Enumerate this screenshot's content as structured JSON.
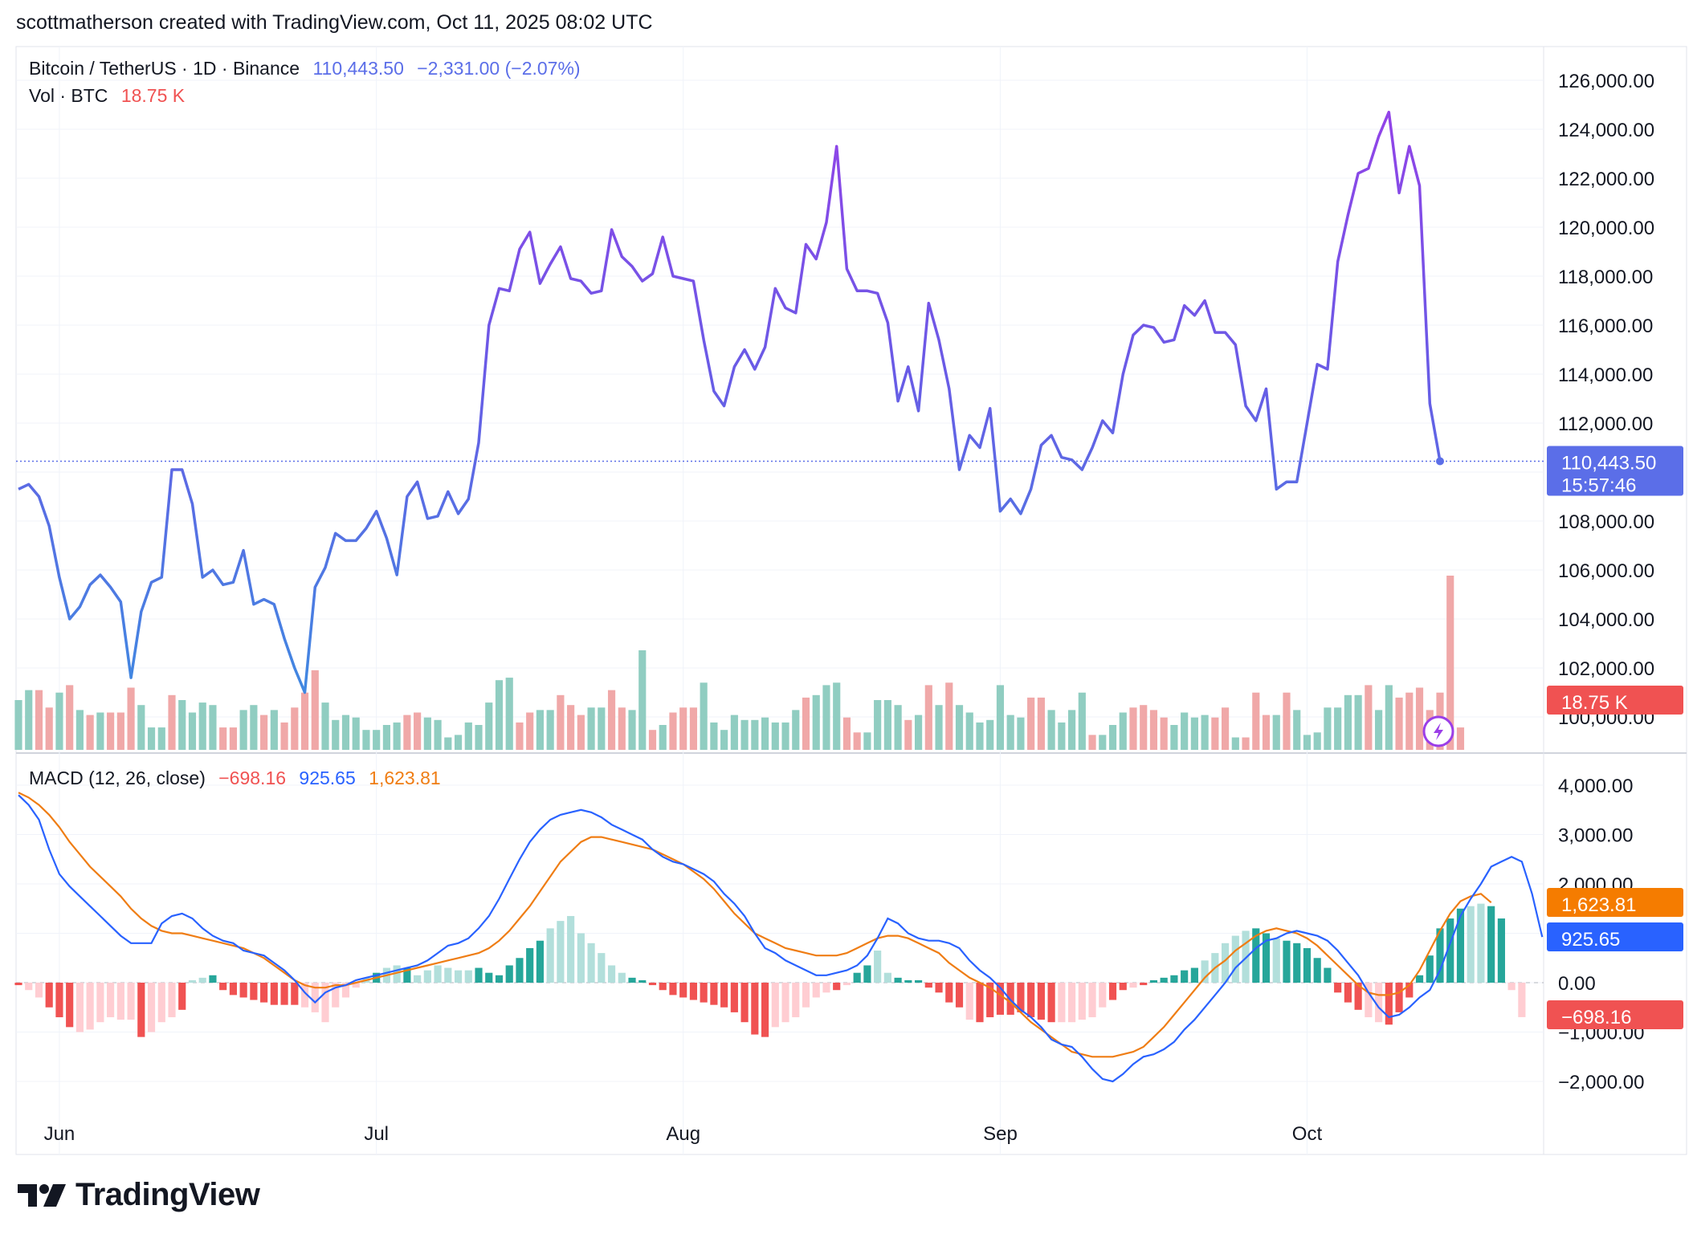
{
  "header": {
    "credit": "scottmatherson created with TradingView.com, Oct 11, 2025 08:02 UTC"
  },
  "legend": {
    "symbol": "Bitcoin / TetherUS · 1D · Binance",
    "last_price": "110,443.50",
    "change": "−2,331.00 (−2.07%)",
    "vol_label": "Vol · BTC",
    "vol_value": "18.75 K",
    "macd_label": "MACD (12, 26, close)",
    "macd_hist": "−698.16",
    "macd_line": "925.65",
    "macd_signal": "1,623.81"
  },
  "tags": {
    "price": "110,443.50",
    "countdown": "15:57:46",
    "volume": "18.75 K",
    "signal": "1,623.81",
    "macd": "925.65",
    "hist": "−698.16"
  },
  "footer": {
    "brand": "TradingView"
  },
  "colors": {
    "price_line_low": "#3a8fe0",
    "price_line_high": "#9b3ee8",
    "vol_up": "#90cdc1",
    "vol_down": "#f0a8a8",
    "macd_line": "#2962ff",
    "signal_line": "#ef7d14",
    "hist_up_strong": "#26a69a",
    "hist_up_weak": "#b2dfdb",
    "hist_down_strong": "#f05252",
    "hist_down_weak": "#ffcdd2",
    "price_tag": "#5b6ee8",
    "vol_tag": "#f05252",
    "macd_tag": "#2962ff",
    "signal_tag": "#f57c00"
  },
  "chart_data": [
    {
      "type": "line",
      "panel": "price",
      "series": [
        {
          "name": "Bitcoin / TetherUS",
          "values": [
            109300,
            109500,
            109000,
            107800,
            105700,
            104000,
            104500,
            105400,
            105800,
            105300,
            104700,
            101600,
            104300,
            105500,
            105700,
            110100,
            110100,
            108700,
            105700,
            106000,
            105400,
            105500,
            106800,
            104600,
            104800,
            104600,
            103200,
            102000,
            101000,
            105300,
            106100,
            107500,
            107200,
            107200,
            107700,
            108400,
            107300,
            105800,
            109000,
            109600,
            108100,
            108200,
            109200,
            108300,
            108900,
            111200,
            116000,
            117500,
            117400,
            119100,
            119800,
            117700,
            118500,
            119200,
            117900,
            117800,
            117300,
            117400,
            119900,
            118800,
            118400,
            117800,
            118100,
            119600,
            118000,
            117900,
            117800,
            115400,
            113300,
            112700,
            114300,
            115000,
            114200,
            115100,
            117500,
            116700,
            116500,
            119300,
            118700,
            120200,
            123300,
            118300,
            117400,
            117400,
            117300,
            116100,
            112900,
            114300,
            112500,
            116900,
            115400,
            113400,
            110100,
            111500,
            111000,
            112600,
            108400,
            108900,
            108300,
            109300,
            111100,
            111500,
            110600,
            110500,
            110100,
            111000,
            112100,
            111600,
            114000,
            115600,
            116000,
            115900,
            115300,
            115400,
            116800,
            116400,
            117000,
            115700,
            115700,
            115200,
            112700,
            112100,
            113400,
            109300,
            109600,
            109600,
            112000,
            114400,
            114200,
            118600,
            120500,
            122200,
            122400,
            123700,
            124700,
            121400,
            123300,
            121700,
            112800,
            110443
          ]
        }
      ],
      "ylim": [
        99000,
        127000
      ],
      "y_ticks": [
        "100,000.00",
        "102,000.00",
        "104,000.00",
        "106,000.00",
        "108,000.00",
        "110,000.00",
        "112,000.00",
        "114,000.00",
        "116,000.00",
        "118,000.00",
        "120,000.00",
        "122,000.00",
        "124,000.00",
        "126,000.00"
      ],
      "x_ticks": [
        "Jun",
        "Jul",
        "Aug",
        "Sep",
        "Oct"
      ]
    },
    {
      "type": "bar",
      "panel": "volume",
      "series": [
        {
          "name": "Vol · BTC",
          "values": [
            20,
            24,
            24,
            17,
            23,
            26,
            16,
            14,
            15,
            15,
            15,
            25,
            18,
            9,
            9,
            22,
            20,
            15,
            19,
            18,
            9,
            9,
            16,
            18,
            14,
            16,
            11,
            17,
            23,
            32,
            19,
            12,
            14,
            13,
            8,
            8,
            10,
            11,
            14,
            15,
            13,
            12,
            5,
            6,
            11,
            10,
            19,
            28,
            29,
            11,
            15,
            16,
            16,
            22,
            18,
            14,
            17,
            17,
            24,
            17,
            16,
            40,
            8,
            10,
            15,
            17,
            17,
            27,
            11,
            8,
            14,
            12,
            12,
            13,
            11,
            11,
            16,
            21,
            22,
            26,
            27,
            13,
            7,
            7,
            20,
            20,
            18,
            12,
            14,
            26,
            18,
            27,
            18,
            15,
            11,
            12,
            26,
            14,
            13,
            21,
            21,
            16,
            11,
            16,
            23,
            6,
            6,
            10,
            15,
            17,
            18,
            16,
            13,
            10,
            15,
            13,
            14,
            13,
            17,
            5,
            5,
            23,
            14,
            14,
            23,
            16,
            6,
            7,
            17,
            17,
            22,
            22,
            26,
            16,
            26,
            21,
            23,
            25,
            16,
            23,
            70,
            9
          ]
        }
      ],
      "up_down": "uuddudududdduuuduuuudduududddduuuuuuuudduuuuuuuuudduuddduudduududdduuuuuuuuuuduuudduuuudududuuuuuuudduuuuduuudddduuuudduddduduuuuuuuduudd"
    },
    {
      "type": "line",
      "panel": "macd",
      "series": [
        {
          "name": "MACD",
          "values": [
            3800,
            3600,
            3300,
            2700,
            2200,
            1950,
            1750,
            1550,
            1350,
            1150,
            950,
            800,
            800,
            800,
            1200,
            1350,
            1400,
            1300,
            1100,
            950,
            850,
            800,
            650,
            600,
            550,
            400,
            250,
            50,
            -200,
            -400,
            -200,
            -100,
            -50,
            50,
            100,
            150,
            200,
            250,
            300,
            350,
            450,
            600,
            750,
            800,
            900,
            1100,
            1350,
            1700,
            2100,
            2500,
            2850,
            3100,
            3300,
            3400,
            3450,
            3500,
            3450,
            3350,
            3200,
            3100,
            3000,
            2900,
            2700,
            2550,
            2450,
            2400,
            2300,
            2200,
            2050,
            1800,
            1600,
            1350,
            1000,
            700,
            600,
            450,
            350,
            250,
            150,
            150,
            200,
            250,
            350,
            550,
            900,
            1300,
            1200,
            1000,
            900,
            850,
            850,
            800,
            700,
            450,
            250,
            100,
            -100,
            -350,
            -550,
            -700,
            -900,
            -1150,
            -1250,
            -1300,
            -1500,
            -1750,
            -1950,
            -2000,
            -1850,
            -1650,
            -1500,
            -1450,
            -1350,
            -1200,
            -950,
            -750,
            -500,
            -250,
            0,
            300,
            500,
            700,
            850,
            900,
            1000,
            1050,
            1000,
            950,
            850,
            650,
            400,
            150,
            -200,
            -500,
            -700,
            -650,
            -500,
            -300,
            -150,
            250,
            800,
            1350,
            1700,
            2000,
            2350,
            2450,
            2550,
            2450,
            1800,
            925
          ]
        },
        {
          "name": "Signal",
          "values": [
            3850,
            3750,
            3600,
            3400,
            3150,
            2850,
            2600,
            2350,
            2150,
            1950,
            1750,
            1500,
            1300,
            1150,
            1050,
            1000,
            1000,
            950,
            900,
            850,
            800,
            750,
            700,
            600,
            500,
            350,
            200,
            50,
            -50,
            -100,
            -100,
            -50,
            -50,
            0,
            50,
            100,
            150,
            200,
            250,
            300,
            350,
            400,
            450,
            500,
            550,
            600,
            700,
            850,
            1050,
            1300,
            1550,
            1850,
            2150,
            2450,
            2650,
            2850,
            2950,
            2950,
            2900,
            2850,
            2800,
            2750,
            2700,
            2600,
            2500,
            2400,
            2250,
            2100,
            1900,
            1650,
            1400,
            1200,
            1000,
            900,
            800,
            700,
            650,
            600,
            550,
            550,
            550,
            600,
            700,
            800,
            900,
            950,
            950,
            900,
            800,
            700,
            600,
            400,
            250,
            100,
            0,
            -100,
            -250,
            -400,
            -600,
            -800,
            -950,
            -1100,
            -1250,
            -1400,
            -1450,
            -1500,
            -1500,
            -1500,
            -1450,
            -1400,
            -1300,
            -1100,
            -900,
            -650,
            -400,
            -150,
            100,
            300,
            450,
            650,
            800,
            950,
            1050,
            1100,
            1050,
            1000,
            900,
            750,
            550,
            350,
            150,
            -50,
            -200,
            -250,
            -250,
            -200,
            -50,
            250,
            650,
            1050,
            1400,
            1650,
            1750,
            1800,
            1623
          ]
        }
      ],
      "ylim": [
        -2300,
        4300
      ],
      "y_ticks": [
        "−2,000.00",
        "−1,000.00",
        "0.00",
        "1,000.00",
        "2,000.00",
        "3,000.00",
        "4,000.00"
      ]
    },
    {
      "type": "bar",
      "panel": "macd-histogram",
      "series": [
        {
          "name": "Histogram",
          "values": [
            -50,
            -150,
            -300,
            -500,
            -700,
            -900,
            -1000,
            -950,
            -800,
            -700,
            -750,
            -750,
            -1100,
            -1000,
            -800,
            -700,
            -550,
            50,
            100,
            150,
            -150,
            -250,
            -300,
            -350,
            -400,
            -450,
            -450,
            -450,
            -500,
            -600,
            -800,
            -500,
            -300,
            -100,
            100,
            200,
            300,
            350,
            300,
            150,
            250,
            350,
            300,
            250,
            250,
            300,
            200,
            150,
            350,
            500,
            700,
            850,
            1100,
            1250,
            1350,
            1000,
            800,
            600,
            350,
            200,
            100,
            50,
            -50,
            -150,
            -250,
            -300,
            -350,
            -400,
            -450,
            -500,
            -600,
            -800,
            -1050,
            -1100,
            -900,
            -800,
            -700,
            -500,
            -300,
            -200,
            -150,
            -50,
            200,
            350,
            650,
            200,
            100,
            50,
            50,
            -100,
            -200,
            -400,
            -500,
            -750,
            -800,
            -700,
            -650,
            -650,
            -600,
            -700,
            -750,
            -800,
            -800,
            -800,
            -750,
            -700,
            -500,
            -350,
            -150,
            -100,
            -50,
            50,
            100,
            150,
            250,
            300,
            450,
            600,
            800,
            950,
            1050,
            1100,
            1000,
            900,
            850,
            800,
            700,
            500,
            300,
            -200,
            -400,
            -550,
            -700,
            -800,
            -850,
            -600,
            -300,
            150,
            550,
            1100,
            1300,
            1500,
            1550,
            1600,
            1550,
            1300,
            -150,
            -698
          ]
        }
      ],
      "strength": "swwssswwwwwwswwwswwssssssssswwwwwwwswwswwwwwwssssssswwwwwwwwsssssssssssssswwwwwwswsswwssssssswsssssssswwwwwsswsssssswwwwwsswsssssssswwsssssssswwss"
    }
  ]
}
